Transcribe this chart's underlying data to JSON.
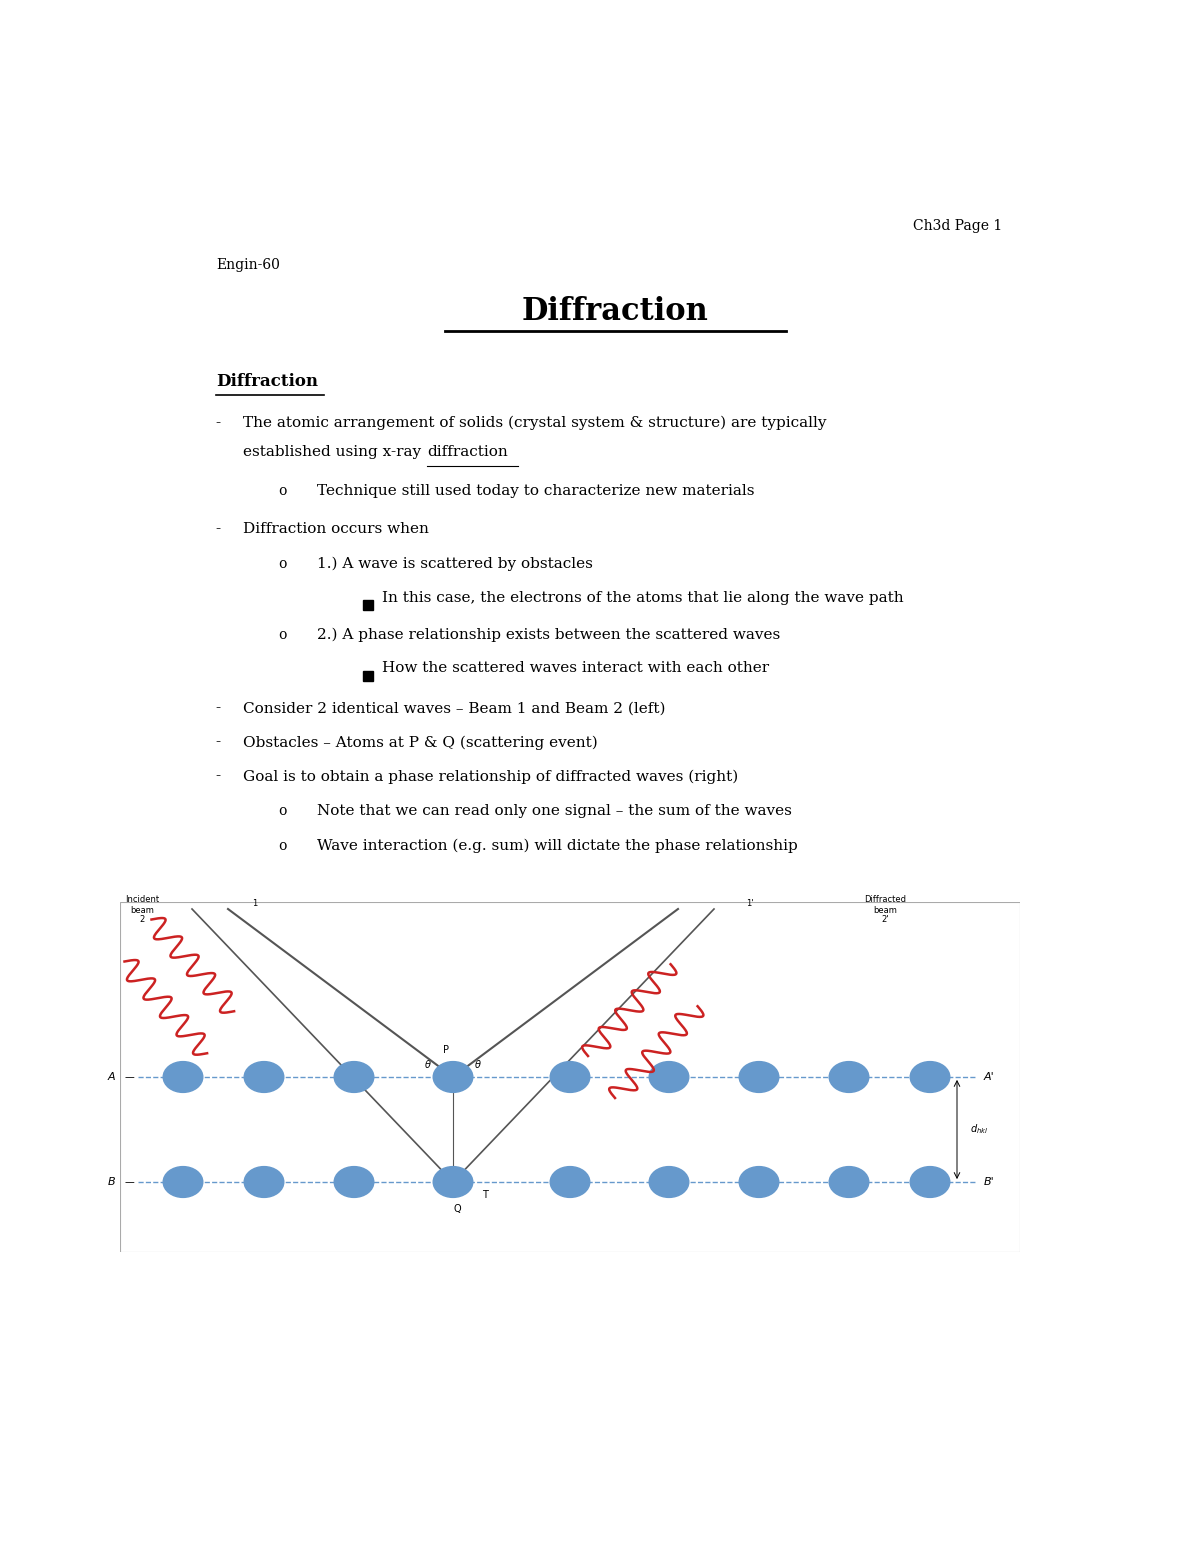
{
  "page_header": "Ch3d Page 1",
  "course": "Engin-60",
  "main_title": "Diffraction",
  "section_title": "Diffraction",
  "bullet1_line1": "The atomic arrangement of solids (crystal system & structure) are typically",
  "bullet1_line2a": "established using x-ray ",
  "bullet1_line2b": "diffraction",
  "sub1": "Technique still used today to characterize new materials",
  "bullet2": "Diffraction occurs when",
  "sub2a": "1.) A wave is scattered by obstacles",
  "subsub2a": "In this case, the electrons of the atoms that lie along the wave path",
  "sub2b": "2.) A phase relationship exists between the scattered waves",
  "subsub2b": "How the scattered waves interact with each other",
  "bullet3": "Consider 2 identical waves – Beam 1 and Beam 2 (left)",
  "bullet4": "Obstacles – Atoms at P & Q (scattering event)",
  "bullet5": "Goal is to obtain a phase relationship of diffracted waves (right)",
  "sub5a": "Note that we can read only one signal – the sum of the waves",
  "sub5b": "Wave interaction (e.g. sum) will dictate the phase relationship",
  "bg_color": "#ffffff",
  "text_color": "#000000",
  "title_fontsize": 22,
  "header_fontsize": 10,
  "body_fontsize": 11,
  "section_fontsize": 12
}
